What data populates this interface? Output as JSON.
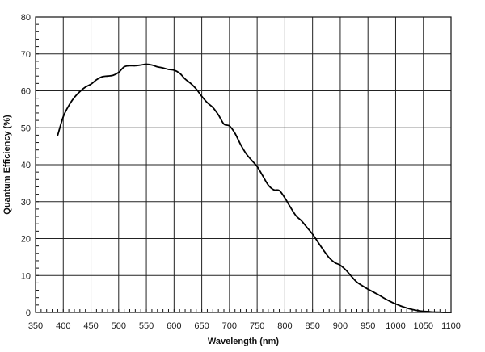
{
  "chart_data": {
    "type": "line",
    "title": "",
    "xlabel": "Wavelength (nm)",
    "ylabel": "Quantum Efficiency (%)",
    "xlim": [
      350,
      1100
    ],
    "ylim": [
      0,
      80
    ],
    "x_ticks": [
      350,
      400,
      450,
      500,
      550,
      600,
      650,
      700,
      750,
      800,
      850,
      900,
      950,
      1000,
      1050,
      1100
    ],
    "y_ticks": [
      0,
      10,
      20,
      30,
      40,
      50,
      60,
      70,
      80
    ],
    "grid": true,
    "legend": "none",
    "line_color": "#000000",
    "series": [
      {
        "x": [
          390,
          400,
          410,
          420,
          430,
          440,
          450,
          460,
          470,
          480,
          490,
          500,
          510,
          520,
          530,
          540,
          550,
          560,
          570,
          580,
          590,
          600,
          610,
          620,
          630,
          640,
          650,
          660,
          670,
          680,
          690,
          700,
          710,
          720,
          730,
          740,
          750,
          760,
          770,
          780,
          790,
          800,
          810,
          820,
          830,
          840,
          850,
          860,
          870,
          880,
          890,
          900,
          910,
          920,
          930,
          940,
          950,
          960,
          970,
          980,
          990,
          1000,
          1010,
          1020,
          1030,
          1040,
          1050,
          1060,
          1070,
          1080,
          1090,
          1100
        ],
        "y": [
          48,
          53,
          56,
          58.2,
          59.8,
          61,
          61.8,
          63,
          63.8,
          64,
          64.2,
          65,
          66.5,
          66.8,
          66.8,
          67,
          67.2,
          67,
          66.5,
          66.2,
          65.8,
          65.6,
          64.8,
          63.2,
          62,
          60.5,
          58.5,
          56.8,
          55.5,
          53.5,
          51,
          50.5,
          48.5,
          45.5,
          43,
          41.2,
          39.5,
          37,
          34.5,
          33.2,
          33,
          31,
          28.5,
          26.2,
          24.8,
          23,
          21.2,
          19,
          16.8,
          14.8,
          13.5,
          12.8,
          11.5,
          9.8,
          8.2,
          7.2,
          6.3,
          5.5,
          4.7,
          3.8,
          3,
          2.3,
          1.7,
          1.2,
          0.8,
          0.5,
          0.3,
          0.2,
          0.1,
          0.05,
          0,
          0
        ]
      }
    ]
  }
}
